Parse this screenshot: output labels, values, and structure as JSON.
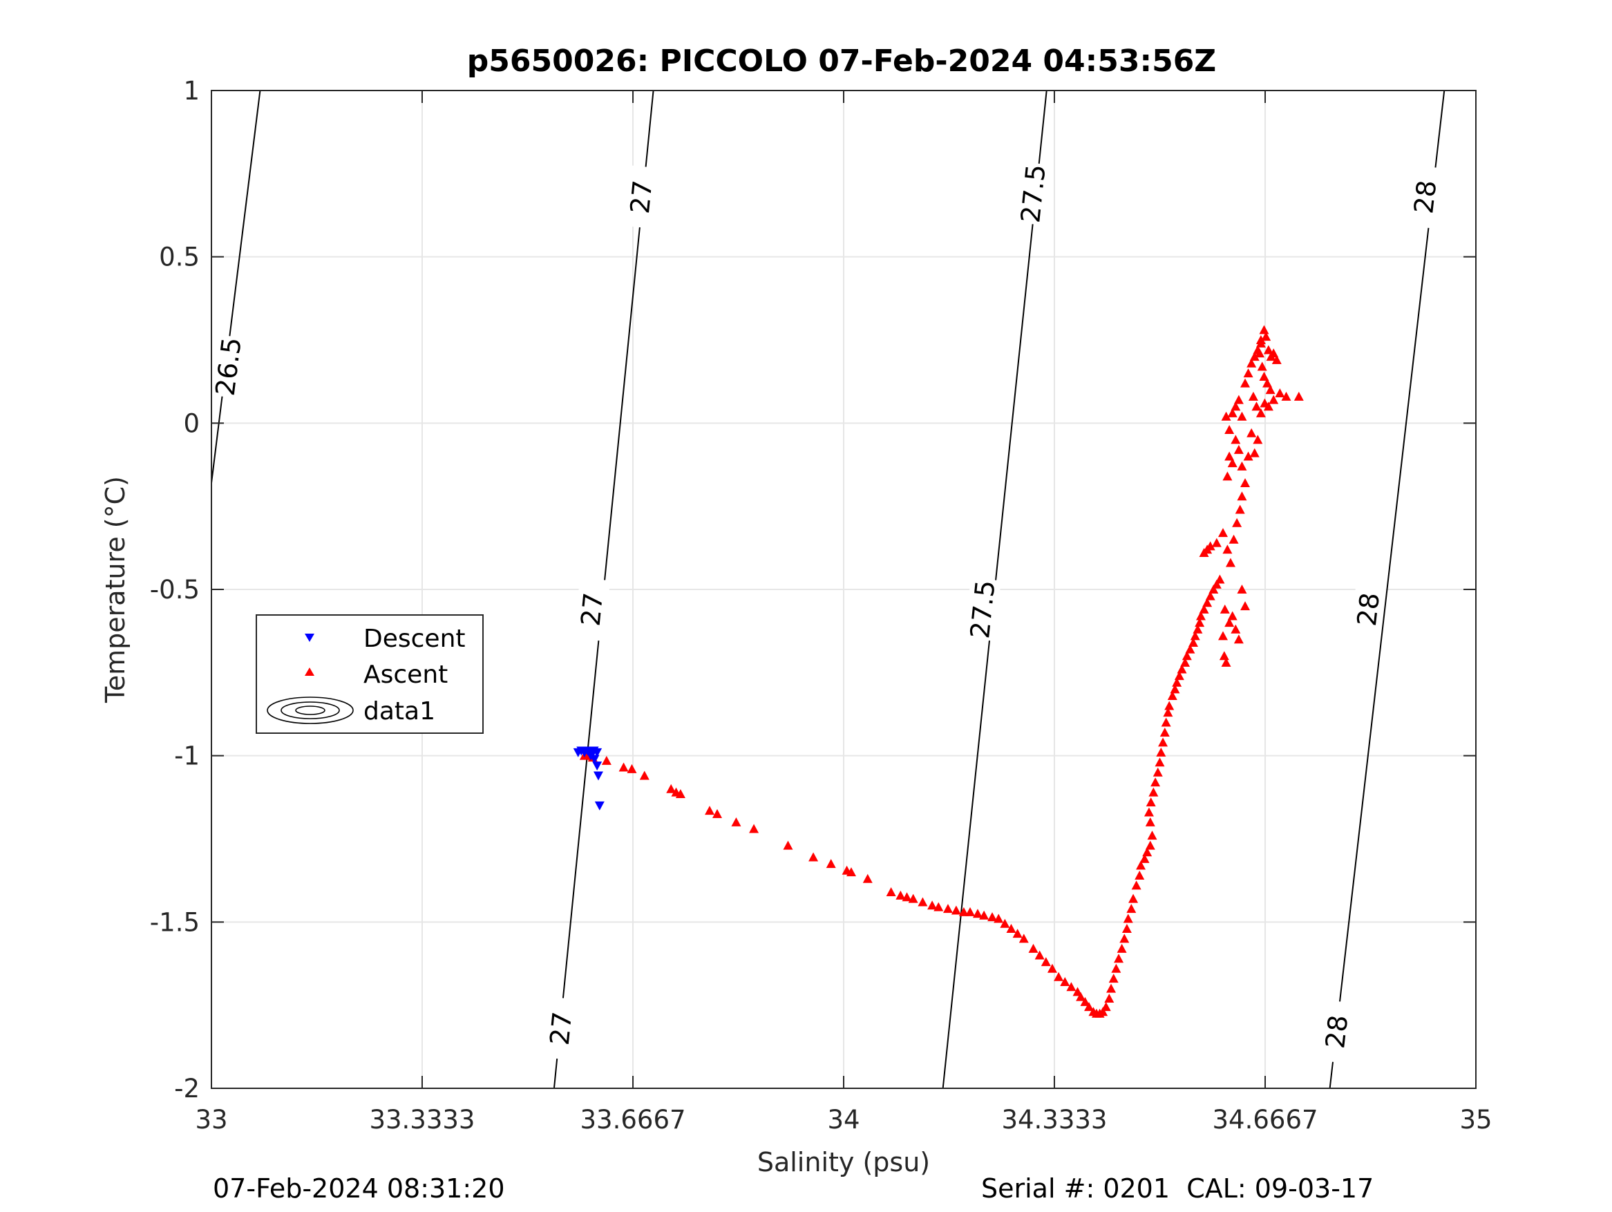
{
  "chart_data": {
    "type": "scatter",
    "title": "p5650026: PICCOLO 07-Feb-2024 04:53:56Z",
    "xlabel": "Salinity (psu)",
    "ylabel": "Temperature (°C)",
    "xlim": [
      33,
      35
    ],
    "ylim": [
      -2,
      1
    ],
    "x_ticks": [
      "33",
      "33.3333",
      "33.6667",
      "34",
      "34.3333",
      "34.6667",
      "35"
    ],
    "y_ticks": [
      "1",
      "0.5",
      "0",
      "-0.5",
      "-1",
      "-1.5",
      "-2"
    ],
    "x_tick_values": [
      33,
      33.3333,
      33.6667,
      34,
      34.3333,
      34.6667,
      35
    ],
    "y_tick_values": [
      1,
      0.5,
      0,
      -0.5,
      -1,
      -1.5,
      -2
    ],
    "grid": true,
    "legend_position": "left-middle",
    "colors": {
      "descent": "#0000ff",
      "ascent": "#ff0000",
      "contour": "#000000",
      "grid": "#e6e6e6"
    },
    "contours": [
      {
        "level": "26.5",
        "points": [
          [
            33.0,
            -0.18
          ],
          [
            33.077,
            1.0
          ]
        ],
        "labels": [
          {
            "text": "26.5",
            "x": 33.027,
            "y": 0.17
          }
        ]
      },
      {
        "level": "27",
        "points": [
          [
            33.542,
            -2.0
          ],
          [
            33.699,
            1.0
          ]
        ],
        "labels": [
          {
            "text": "27",
            "x": 33.68,
            "y": 0.68
          },
          {
            "text": "27",
            "x": 33.602,
            "y": -0.56
          },
          {
            "text": "27",
            "x": 33.553,
            "y": -1.82
          }
        ]
      },
      {
        "level": "27.5",
        "points": [
          [
            34.157,
            -2.0
          ],
          [
            34.321,
            1.0
          ]
        ],
        "labels": [
          {
            "text": "27.5",
            "x": 34.3,
            "y": 0.69
          },
          {
            "text": "27.5",
            "x": 34.22,
            "y": -0.56
          }
        ]
      },
      {
        "level": "28",
        "points": [
          [
            34.769,
            -2.0
          ],
          [
            34.95,
            1.0
          ]
        ],
        "labels": [
          {
            "text": "28",
            "x": 34.92,
            "y": 0.68
          },
          {
            "text": "28",
            "x": 34.83,
            "y": -0.56
          },
          {
            "text": "28",
            "x": 34.78,
            "y": -1.83
          }
        ]
      }
    ],
    "series": [
      {
        "name": "Descent",
        "marker": "triangle-down",
        "points": [
          [
            33.58,
            -0.99
          ],
          [
            33.585,
            -0.985
          ],
          [
            33.59,
            -0.99
          ],
          [
            33.595,
            -0.985
          ],
          [
            33.6,
            -0.99
          ],
          [
            33.605,
            -0.985
          ],
          [
            33.61,
            -0.99
          ],
          [
            33.6,
            -1.0
          ],
          [
            33.606,
            -1.01
          ],
          [
            33.61,
            -1.03
          ],
          [
            33.612,
            -1.06
          ],
          [
            33.614,
            -1.15
          ]
        ]
      },
      {
        "name": "Ascent",
        "marker": "triangle-up",
        "points": [
          [
            33.59,
            -1.0
          ],
          [
            33.6,
            -1.0
          ],
          [
            33.595,
            -0.995
          ],
          [
            33.603,
            -1.005
          ],
          [
            33.625,
            -1.015
          ],
          [
            33.652,
            -1.035
          ],
          [
            33.665,
            -1.04
          ],
          [
            33.685,
            -1.06
          ],
          [
            33.727,
            -1.1
          ],
          [
            33.735,
            -1.11
          ],
          [
            33.742,
            -1.115
          ],
          [
            33.788,
            -1.165
          ],
          [
            33.8,
            -1.175
          ],
          [
            33.83,
            -1.2
          ],
          [
            33.858,
            -1.22
          ],
          [
            33.912,
            -1.27
          ],
          [
            33.952,
            -1.305
          ],
          [
            33.98,
            -1.325
          ],
          [
            34.005,
            -1.345
          ],
          [
            34.012,
            -1.35
          ],
          [
            34.038,
            -1.37
          ],
          [
            34.075,
            -1.41
          ],
          [
            34.09,
            -1.42
          ],
          [
            34.1,
            -1.425
          ],
          [
            34.11,
            -1.43
          ],
          [
            34.125,
            -1.44
          ],
          [
            34.14,
            -1.45
          ],
          [
            34.15,
            -1.455
          ],
          [
            34.165,
            -1.46
          ],
          [
            34.178,
            -1.465
          ],
          [
            34.19,
            -1.47
          ],
          [
            34.2,
            -1.47
          ],
          [
            34.212,
            -1.475
          ],
          [
            34.222,
            -1.48
          ],
          [
            34.235,
            -1.485
          ],
          [
            34.245,
            -1.49
          ],
          [
            34.255,
            -1.505
          ],
          [
            34.265,
            -1.52
          ],
          [
            34.275,
            -1.535
          ],
          [
            34.285,
            -1.55
          ],
          [
            34.3,
            -1.58
          ],
          [
            34.31,
            -1.6
          ],
          [
            34.32,
            -1.62
          ],
          [
            34.33,
            -1.64
          ],
          [
            34.34,
            -1.665
          ],
          [
            34.35,
            -1.68
          ],
          [
            34.36,
            -1.695
          ],
          [
            34.37,
            -1.71
          ],
          [
            34.375,
            -1.725
          ],
          [
            34.382,
            -1.74
          ],
          [
            34.388,
            -1.755
          ],
          [
            34.395,
            -1.77
          ],
          [
            34.4,
            -1.775
          ],
          [
            34.405,
            -1.775
          ],
          [
            34.41,
            -1.77
          ],
          [
            34.415,
            -1.755
          ],
          [
            34.42,
            -1.73
          ],
          [
            34.423,
            -1.7
          ],
          [
            34.427,
            -1.67
          ],
          [
            34.431,
            -1.64
          ],
          [
            34.435,
            -1.61
          ],
          [
            34.44,
            -1.58
          ],
          [
            34.444,
            -1.55
          ],
          [
            34.448,
            -1.52
          ],
          [
            34.45,
            -1.49
          ],
          [
            34.455,
            -1.46
          ],
          [
            34.458,
            -1.43
          ],
          [
            34.463,
            -1.39
          ],
          [
            34.468,
            -1.36
          ],
          [
            34.47,
            -1.33
          ],
          [
            34.476,
            -1.31
          ],
          [
            34.48,
            -1.29
          ],
          [
            34.485,
            -1.27
          ],
          [
            34.488,
            -1.24
          ],
          [
            34.485,
            -1.2
          ],
          [
            34.483,
            -1.17
          ],
          [
            34.486,
            -1.14
          ],
          [
            34.49,
            -1.11
          ],
          [
            34.493,
            -1.08
          ],
          [
            34.497,
            -1.05
          ],
          [
            34.5,
            -1.02
          ],
          [
            34.502,
            -0.99
          ],
          [
            34.505,
            -0.96
          ],
          [
            34.508,
            -0.93
          ],
          [
            34.51,
            -0.9
          ],
          [
            34.513,
            -0.87
          ],
          [
            34.515,
            -0.85
          ],
          [
            34.52,
            -0.82
          ],
          [
            34.524,
            -0.8
          ],
          [
            34.527,
            -0.78
          ],
          [
            34.531,
            -0.76
          ],
          [
            34.535,
            -0.74
          ],
          [
            34.54,
            -0.72
          ],
          [
            34.543,
            -0.7
          ],
          [
            34.548,
            -0.68
          ],
          [
            34.553,
            -0.66
          ],
          [
            34.556,
            -0.64
          ],
          [
            34.56,
            -0.62
          ],
          [
            34.563,
            -0.6
          ],
          [
            34.565,
            -0.58
          ],
          [
            34.57,
            -0.56
          ],
          [
            34.575,
            -0.54
          ],
          [
            34.58,
            -0.52
          ],
          [
            34.585,
            -0.5
          ],
          [
            34.59,
            -0.485
          ],
          [
            34.595,
            -0.47
          ],
          [
            34.57,
            -0.39
          ],
          [
            34.575,
            -0.38
          ],
          [
            34.58,
            -0.37
          ],
          [
            34.59,
            -0.36
          ],
          [
            34.6,
            -0.33
          ],
          [
            34.603,
            -0.56
          ],
          [
            34.6,
            -0.64
          ],
          [
            34.602,
            -0.7
          ],
          [
            34.605,
            -0.72
          ],
          [
            34.61,
            -0.6
          ],
          [
            34.615,
            -0.58
          ],
          [
            34.62,
            -0.62
          ],
          [
            34.625,
            -0.65
          ],
          [
            34.63,
            -0.5
          ],
          [
            34.635,
            -0.55
          ],
          [
            34.607,
            -0.38
          ],
          [
            34.612,
            -0.42
          ],
          [
            34.617,
            -0.35
          ],
          [
            34.622,
            -0.3
          ],
          [
            34.627,
            -0.26
          ],
          [
            34.63,
            -0.22
          ],
          [
            34.607,
            -0.16
          ],
          [
            34.61,
            -0.1
          ],
          [
            34.615,
            -0.12
          ],
          [
            34.62,
            -0.05
          ],
          [
            34.625,
            -0.08
          ],
          [
            34.63,
            -0.13
          ],
          [
            34.635,
            -0.18
          ],
          [
            34.64,
            -0.1
          ],
          [
            34.645,
            -0.03
          ],
          [
            34.65,
            -0.09
          ],
          [
            34.655,
            -0.05
          ],
          [
            34.605,
            0.02
          ],
          [
            34.61,
            -0.02
          ],
          [
            34.615,
            0.03
          ],
          [
            34.62,
            0.05
          ],
          [
            34.625,
            0.07
          ],
          [
            34.63,
            0.02
          ],
          [
            34.635,
            0.12
          ],
          [
            34.64,
            0.15
          ],
          [
            34.645,
            0.18
          ],
          [
            34.65,
            0.2
          ],
          [
            34.655,
            0.22
          ],
          [
            34.66,
            0.25
          ],
          [
            34.665,
            0.28
          ],
          [
            34.668,
            0.26
          ],
          [
            34.672,
            0.22
          ],
          [
            34.676,
            0.2
          ],
          [
            34.68,
            0.21
          ],
          [
            34.685,
            0.19
          ],
          [
            34.66,
            0.24
          ],
          [
            34.658,
            0.21
          ],
          [
            34.662,
            0.17
          ],
          [
            34.665,
            0.14
          ],
          [
            34.67,
            0.12
          ],
          [
            34.675,
            0.1
          ],
          [
            34.648,
            0.08
          ],
          [
            34.653,
            0.05
          ],
          [
            34.66,
            0.03
          ],
          [
            34.666,
            0.06
          ],
          [
            34.672,
            0.05
          ],
          [
            34.68,
            0.07
          ],
          [
            34.69,
            0.09
          ],
          [
            34.7,
            0.08
          ],
          [
            34.72,
            0.08
          ]
        ]
      }
    ],
    "legend": [
      {
        "label": "Descent"
      },
      {
        "label": "Ascent"
      },
      {
        "label": "data1"
      }
    ]
  },
  "footer": {
    "timestamp": "07-Feb-2024 08:31:20",
    "serial": "Serial #: 0201  CAL: 09-03-17"
  }
}
